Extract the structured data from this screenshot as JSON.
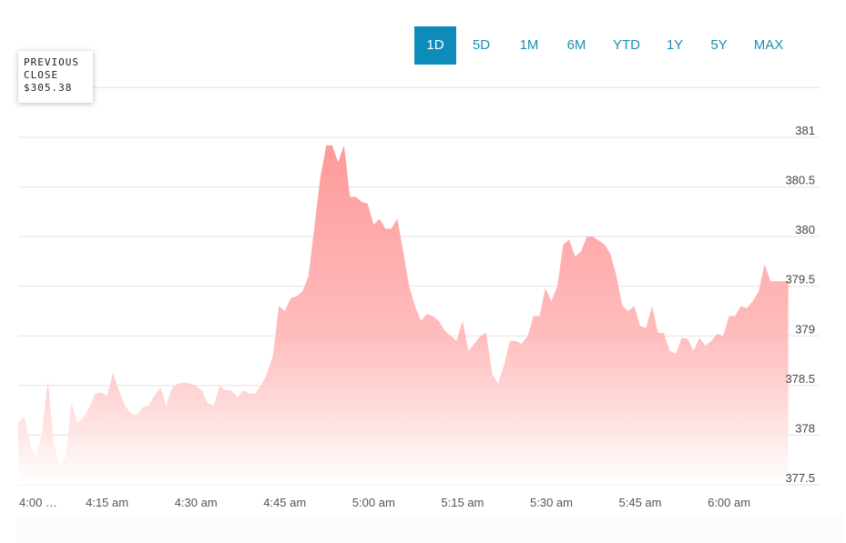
{
  "range_tabs": [
    {
      "label": "1D",
      "active": true
    },
    {
      "label": "5D",
      "active": false
    },
    {
      "label": "1M",
      "active": false
    },
    {
      "label": "6M",
      "active": false
    },
    {
      "label": "YTD",
      "active": false
    },
    {
      "label": "1Y",
      "active": false
    },
    {
      "label": "5Y",
      "active": false
    },
    {
      "label": "MAX",
      "active": false
    }
  ],
  "previous_close": {
    "label": "PREVIOUS CLOSE",
    "value": "$305.38"
  },
  "colors": {
    "accent": "#0d8cba",
    "area_top": "#ff9999",
    "area_bottom": "#ffffff",
    "grid": "#e3e3e3"
  },
  "chart_data": {
    "type": "area",
    "title": "",
    "xlabel": "",
    "ylabel": "",
    "ylim": [
      377.45,
      381.05
    ],
    "y_ticks": [
      377.5,
      378,
      378.5,
      379,
      379.5,
      380,
      380.5,
      381
    ],
    "y_tick_labels": [
      "377.5",
      "378",
      "378.5",
      "379",
      "379.5",
      "380",
      "380.5",
      "381"
    ],
    "x_ticks": [
      "4:00 …",
      "4:15 am",
      "4:30 am",
      "4:45 am",
      "5:00 am",
      "5:15 am",
      "5:30 am",
      "5:45 am",
      "6:00 am"
    ],
    "x_tick_minutes": [
      240,
      255,
      270,
      285,
      300,
      315,
      330,
      345,
      360
    ],
    "grid": true,
    "series": [
      {
        "x_minutes": [
          240,
          241,
          242,
          243,
          244,
          245,
          246,
          247,
          248,
          249,
          250,
          251,
          252,
          253,
          254,
          255,
          256,
          257,
          258,
          259,
          260,
          261,
          262,
          263,
          264,
          265,
          266,
          267,
          268,
          269,
          270,
          271,
          272,
          273,
          274,
          275,
          276,
          277,
          278,
          279,
          280,
          281,
          282,
          283,
          284,
          285,
          286,
          287,
          288,
          289,
          290,
          291,
          292,
          293,
          294,
          295,
          296,
          297,
          298,
          299,
          300,
          301,
          302,
          303,
          304,
          305,
          306,
          307,
          308,
          309,
          310,
          311,
          312,
          313,
          314,
          315,
          316,
          317,
          318,
          319,
          320,
          321,
          322,
          323,
          324,
          325,
          326,
          327,
          328,
          329,
          330,
          331,
          332,
          333,
          334,
          335,
          336,
          337,
          338,
          339,
          340,
          341,
          342,
          343,
          344,
          345,
          346,
          347,
          348,
          349,
          350,
          351,
          352,
          353,
          354,
          355,
          356,
          357,
          358,
          359,
          360,
          361,
          362,
          363,
          364,
          365,
          366,
          367,
          368,
          369,
          370
        ],
        "values": [
          378.12,
          378.19,
          377.92,
          377.78,
          378.02,
          378.55,
          377.92,
          377.68,
          377.78,
          378.32,
          378.12,
          378.18,
          378.28,
          378.42,
          378.43,
          378.4,
          378.63,
          378.45,
          378.3,
          378.22,
          378.2,
          378.28,
          378.3,
          378.4,
          378.48,
          378.3,
          378.48,
          378.52,
          378.53,
          378.52,
          378.5,
          378.45,
          378.32,
          378.3,
          378.5,
          378.45,
          378.45,
          378.38,
          378.45,
          378.42,
          378.42,
          378.5,
          378.62,
          378.8,
          379.3,
          379.25,
          379.38,
          379.4,
          379.45,
          379.6,
          380.1,
          380.6,
          380.92,
          380.92,
          380.75,
          380.92,
          380.4,
          380.4,
          380.35,
          380.33,
          380.12,
          380.18,
          380.08,
          380.08,
          380.18,
          379.85,
          379.5,
          379.3,
          379.15,
          379.22,
          379.2,
          379.15,
          379.05,
          379.0,
          378.95,
          379.15,
          378.85,
          378.92,
          379.0,
          379.03,
          378.62,
          378.52,
          378.7,
          378.95,
          378.95,
          378.92,
          379.0,
          379.2,
          379.2,
          379.48,
          379.35,
          379.5,
          379.92,
          379.97,
          379.8,
          379.85,
          380.0,
          380.0,
          379.96,
          379.92,
          379.82,
          379.6,
          379.3,
          379.25,
          379.3,
          379.1,
          379.08,
          379.3,
          379.03,
          379.03,
          378.85,
          378.82,
          378.98,
          378.97,
          378.85,
          378.98,
          378.9,
          378.95,
          379.02,
          379.0,
          379.2,
          379.2,
          379.3,
          379.28,
          379.35,
          379.45,
          379.72,
          379.55,
          379.55,
          379.55,
          379.55
        ]
      }
    ]
  }
}
